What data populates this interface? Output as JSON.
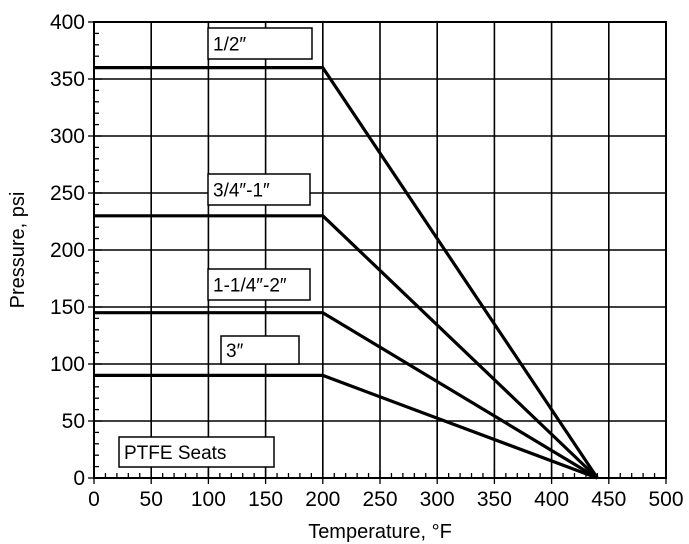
{
  "chart_data": {
    "type": "line",
    "xlabel": "Temperature, °F",
    "ylabel": "Pressure, psi",
    "xlim": [
      0,
      500
    ],
    "ylim": [
      0,
      400
    ],
    "xticks": [
      0,
      50,
      100,
      150,
      200,
      250,
      300,
      350,
      400,
      450,
      500
    ],
    "yticks": [
      0,
      50,
      100,
      150,
      200,
      250,
      300,
      350,
      400
    ],
    "grid": true,
    "series": [
      {
        "name": "1/2″",
        "x": [
          0,
          200,
          440
        ],
        "y": [
          360,
          360,
          0
        ]
      },
      {
        "name": "3/4″-1″",
        "x": [
          0,
          200,
          440
        ],
        "y": [
          230,
          230,
          0
        ]
      },
      {
        "name": "1-1/4″-2″",
        "x": [
          0,
          200,
          440
        ],
        "y": [
          145,
          145,
          0
        ]
      },
      {
        "name": "3″",
        "x": [
          0,
          200,
          440
        ],
        "y": [
          90,
          90,
          0
        ]
      }
    ],
    "annotations": [
      {
        "text": "PTFE Seats"
      }
    ]
  }
}
